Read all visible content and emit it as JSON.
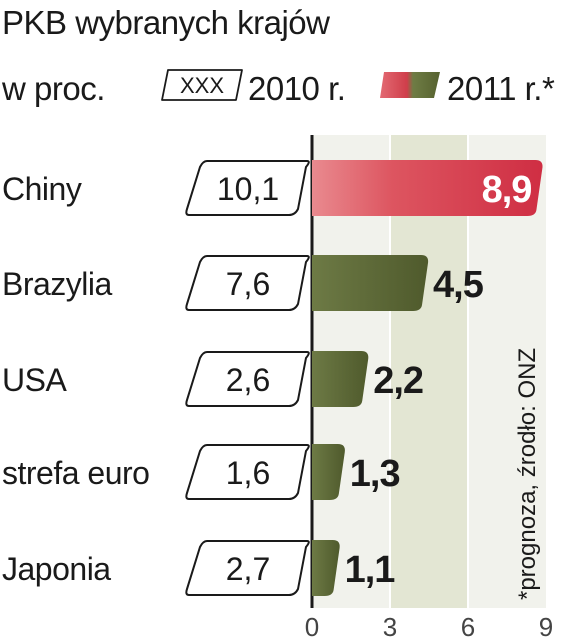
{
  "chart_data": {
    "type": "bar",
    "orientation": "horizontal",
    "title": "PKB wybranych krajów",
    "unit_label": "w proc.",
    "legend": {
      "box_sample": "XXX",
      "series_2010_label": "2010 r.",
      "series_2011_label": "2011 r.*"
    },
    "categories": [
      "Chiny",
      "Brazylia",
      "USA",
      "strefa euro",
      "Japonia"
    ],
    "series": [
      {
        "name": "2010 r.",
        "values": [
          "10,1",
          "7,6",
          "2,6",
          "1,6",
          "2,7"
        ]
      },
      {
        "name": "2011 r.*",
        "values": [
          8.9,
          4.5,
          2.2,
          1.3,
          1.1
        ],
        "labels": [
          "8,9",
          "4,5",
          "2,2",
          "1,3",
          "1,1"
        ]
      }
    ],
    "xlim": [
      0,
      9
    ],
    "xticks": [
      "0",
      "3",
      "6",
      "9"
    ],
    "source_note": "*prognoza, źrodło: ONZ",
    "colors": {
      "highlight_bar": "#d8434f",
      "bar": "#5f6b37",
      "band": "#e3e6d3",
      "axis": "#1a1a1a"
    }
  }
}
